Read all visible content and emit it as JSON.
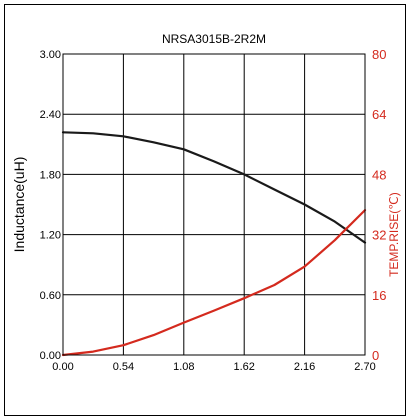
{
  "chart_data": {
    "type": "line",
    "title": "NRSA3015B-2R2M",
    "xlabel": "",
    "ylabel": "Inductance(uH)",
    "y2label": "TEMP.RISE(℃)",
    "xlim": [
      0,
      2.7
    ],
    "ylim": [
      0,
      3.0
    ],
    "y2lim": [
      0,
      80
    ],
    "x_ticks": [
      "0.00",
      "0.54",
      "1.08",
      "1.62",
      "2.16",
      "2.70"
    ],
    "y_ticks": [
      "0.00",
      "0.60",
      "1.20",
      "1.80",
      "2.40",
      "3.00"
    ],
    "y2_ticks": [
      "0",
      "16",
      "32",
      "48",
      "64",
      "80"
    ],
    "grid": true,
    "colors": {
      "inductance": "#1a1a1a",
      "temp_rise": "#d42a1e",
      "right_axis": "#d42a1e"
    },
    "series": [
      {
        "key": "inductance",
        "axis": "left",
        "x": [
          0.0,
          0.27,
          0.54,
          0.81,
          1.08,
          1.35,
          1.62,
          1.89,
          2.16,
          2.43,
          2.7
        ],
        "values": [
          2.22,
          2.21,
          2.18,
          2.12,
          2.05,
          1.93,
          1.8,
          1.65,
          1.5,
          1.33,
          1.12
        ]
      },
      {
        "key": "temp_rise",
        "axis": "right",
        "x": [
          0.0,
          0.27,
          0.54,
          0.81,
          1.08,
          1.35,
          1.62,
          1.89,
          2.16,
          2.43,
          2.7
        ],
        "values": [
          0,
          0.9,
          2.6,
          5.3,
          8.6,
          11.8,
          15.1,
          18.6,
          23.5,
          30.5,
          38.5
        ]
      }
    ]
  }
}
